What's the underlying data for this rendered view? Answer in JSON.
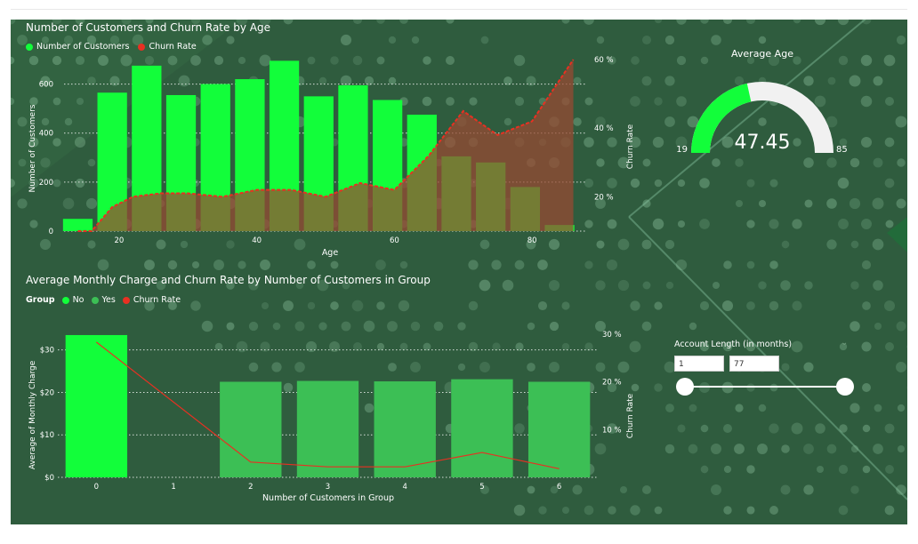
{
  "colors": {
    "bright_green": "#12fe3a",
    "mid_green": "#3cbf55",
    "olive": "#72a62a",
    "churn_red": "#e83022",
    "churn_fill": "#9a4a32",
    "background": "#2f5c3e"
  },
  "age_chart": {
    "title": "Number of Customers and Churn Rate by Age",
    "legend": [
      "Number of Customers",
      "Churn Rate"
    ],
    "xlabel": "Age",
    "ylabel": "Number of Customers",
    "y2label": "Churn Rate",
    "yticks": [
      "0",
      "200",
      "400",
      "600"
    ],
    "y2ticks": [
      "20 %",
      "40 %",
      "60 %"
    ],
    "xticks": [
      "20",
      "40",
      "60",
      "80"
    ]
  },
  "group_chart": {
    "title": "Average Monthly Charge and Churn Rate by Number of Customers in Group",
    "legend_title": "Group",
    "legend": [
      "No",
      "Yes",
      "Churn Rate"
    ],
    "xlabel": "Number of Customers in Group",
    "ylabel": "Average of Monthly Charge",
    "y2label": "Churn Rate",
    "yticks": [
      "$0",
      "$10",
      "$20",
      "$30"
    ],
    "y2ticks": [
      "10 %",
      "20 %",
      "30 %"
    ],
    "xticks": [
      "0",
      "1",
      "2",
      "3",
      "4",
      "5",
      "6"
    ]
  },
  "gauge": {
    "title": "Average Age",
    "value_label": "47.45",
    "min_label": "19",
    "max_label": "85"
  },
  "slicer": {
    "label": "Account Length (in months)",
    "min_value": "1",
    "max_value": "77"
  },
  "chart_data": [
    {
      "type": "bar",
      "title": "Number of Customers and Churn Rate by Age",
      "xlabel": "Age",
      "ylabel": "Number of Customers",
      "x": [
        14,
        19,
        24,
        29,
        34,
        39,
        44,
        49,
        54,
        59,
        64,
        69,
        74,
        79,
        84
      ],
      "series": [
        {
          "name": "Number of Customers",
          "axis": "left",
          "values": [
            50,
            565,
            675,
            555,
            600,
            620,
            695,
            550,
            595,
            535,
            475,
            305,
            280,
            180,
            25
          ]
        },
        {
          "name": "Churn Rate",
          "axis": "right",
          "type": "area",
          "x": [
            14,
            16,
            19,
            22,
            26,
            30,
            35,
            40,
            45,
            50,
            55,
            60,
            65,
            70,
            75,
            80,
            86
          ],
          "values": [
            10,
            10,
            17,
            20,
            21,
            21,
            20,
            22,
            22,
            20,
            24,
            22,
            32,
            45,
            38,
            42,
            60
          ]
        }
      ],
      "ylim": [
        0,
        700
      ],
      "y2lim": [
        10,
        60
      ],
      "xlim": [
        12,
        88
      ]
    },
    {
      "type": "bar",
      "title": "Average Monthly Charge and Churn Rate by Number of Customers in Group",
      "xlabel": "Number of Customers in Group",
      "ylabel": "Average of Monthly Charge",
      "categories": [
        "0",
        "1",
        "2",
        "3",
        "4",
        "5",
        "6"
      ],
      "series": [
        {
          "name": "No",
          "axis": "left",
          "values": [
            33.5,
            null,
            null,
            null,
            null,
            null,
            null
          ]
        },
        {
          "name": "Yes",
          "axis": "left",
          "values": [
            null,
            null,
            22.5,
            22.7,
            22.6,
            23.1,
            22.5
          ]
        },
        {
          "name": "Churn Rate",
          "axis": "right",
          "type": "line",
          "values": [
            28.3,
            null,
            3.2,
            2.2,
            2.2,
            5.2,
            1.8
          ]
        }
      ],
      "ylim": [
        0,
        36
      ],
      "y2lim": [
        0,
        32
      ]
    },
    {
      "type": "gauge",
      "title": "Average Age",
      "value": 47.45,
      "min": 19,
      "max": 85
    }
  ]
}
